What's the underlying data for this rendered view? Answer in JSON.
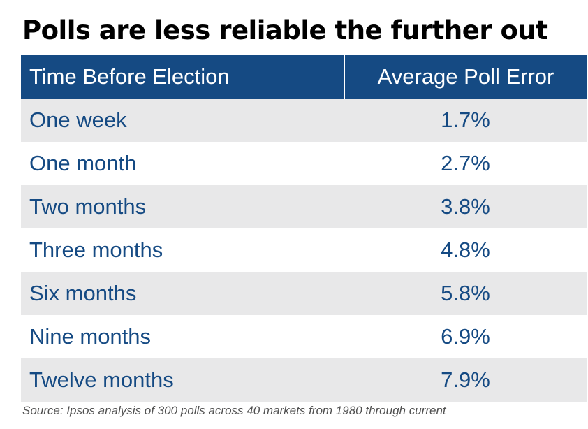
{
  "chart_data": {
    "type": "table",
    "title": "Polls are less reliable the further out",
    "columns": [
      "Time Before Election",
      "Average Poll Error"
    ],
    "rows": [
      {
        "time": "One week",
        "error": "1.7%"
      },
      {
        "time": "One month",
        "error": "2.7%"
      },
      {
        "time": "Two months",
        "error": "3.8%"
      },
      {
        "time": "Three months",
        "error": "4.8%"
      },
      {
        "time": "Six months",
        "error": "5.8%"
      },
      {
        "time": "Nine months",
        "error": "6.9%"
      },
      {
        "time": "Twelve months",
        "error": "7.9%"
      }
    ],
    "source": "Source: Ipsos analysis of 300 polls across 40 markets from 1980 through current"
  },
  "colors": {
    "header_background": "#154a83",
    "header_text": "#ffffff",
    "body_text": "#154a83",
    "stripe": "#e8e8e9"
  }
}
